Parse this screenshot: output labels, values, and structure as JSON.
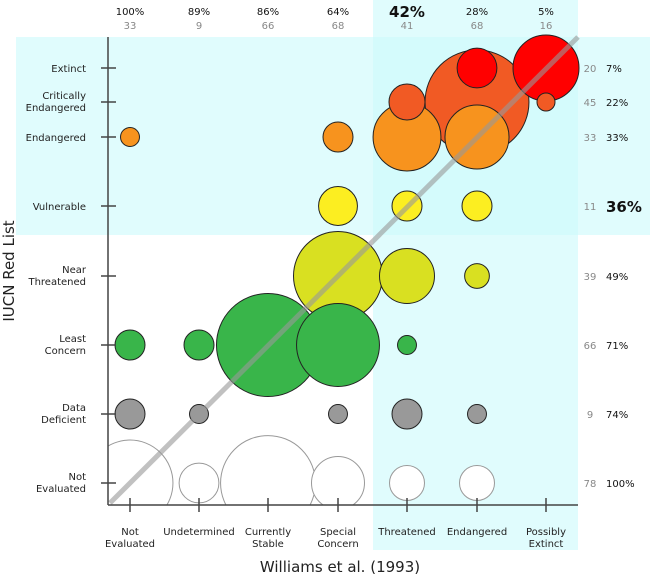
{
  "chart_data": {
    "type": "bubble",
    "xlabel": "Williams et al. (1993)",
    "ylabel": "IUCN Red List",
    "x_categories": [
      "Not Evaluated",
      "Undetermined",
      "Currently Stable",
      "Special Concern",
      "Threatened",
      "Endangered",
      "Possibly Extinct"
    ],
    "y_categories": [
      "Not Evaluated",
      "Data Deficient",
      "Least Concern",
      "Near Threatened",
      "Vulnerable",
      "Endangered",
      "Critically Endangered",
      "Extinct"
    ],
    "column_summary": [
      {
        "pct": "100%",
        "n": "33",
        "bold": false
      },
      {
        "pct": "89%",
        "n": "9",
        "bold": false
      },
      {
        "pct": "86%",
        "n": "66",
        "bold": false
      },
      {
        "pct": "64%",
        "n": "68",
        "bold": false
      },
      {
        "pct": "42%",
        "n": "41",
        "bold": true
      },
      {
        "pct": "28%",
        "n": "68",
        "bold": false
      },
      {
        "pct": "5%",
        "n": "16",
        "bold": false
      }
    ],
    "row_summary": [
      {
        "row": "Extinct",
        "n": "20",
        "pct": "7%",
        "bold": false
      },
      {
        "row": "Critically Endangered",
        "n": "45",
        "pct": "22%",
        "bold": false
      },
      {
        "row": "Endangered",
        "n": "33",
        "pct": "33%",
        "bold": false
      },
      {
        "row": "Vulnerable",
        "n": "11",
        "pct": "36%",
        "bold": true
      },
      {
        "row": "Near Threatened",
        "n": "39",
        "pct": "49%",
        "bold": false
      },
      {
        "row": "Least Concern",
        "n": "66",
        "pct": "71%",
        "bold": false
      },
      {
        "row": "Data Deficient",
        "n": "9",
        "pct": "74%",
        "bold": false
      },
      {
        "row": "Not Evaluated",
        "n": "78",
        "pct": "100%",
        "bold": false
      }
    ],
    "row_colors": {
      "Extinct": "#ff0000",
      "Critically Endangered": "#f15a24",
      "Endangered": "#f7931e",
      "Vulnerable": "#fcee21",
      "Near Threatened": "#d9e021",
      "Least Concern": "#39b54a",
      "Data Deficient": "#999999",
      "Not Evaluated": "#ffffff"
    },
    "highlight_color": "#ccfafc",
    "diagonal_reference_line": true,
    "points": [
      {
        "x": "Endangered",
        "y": "Extinct",
        "size": 44
      },
      {
        "x": "Possibly Extinct",
        "y": "Extinct",
        "size": 121
      },
      {
        "x": "Threatened",
        "y": "Critically Endangered",
        "size": 36
      },
      {
        "x": "Endangered",
        "y": "Critically Endangered",
        "size": 300
      },
      {
        "x": "Possibly Extinct",
        "y": "Critically Endangered",
        "size": 9
      },
      {
        "x": "Not Evaluated",
        "y": "Endangered",
        "size": 10
      },
      {
        "x": "Special Concern",
        "y": "Endangered",
        "size": 25
      },
      {
        "x": "Threatened",
        "y": "Endangered",
        "size": 128
      },
      {
        "x": "Endangered",
        "y": "Endangered",
        "size": 114
      },
      {
        "x": "Special Concern",
        "y": "Vulnerable",
        "size": 42
      },
      {
        "x": "Threatened",
        "y": "Vulnerable",
        "size": 25
      },
      {
        "x": "Endangered",
        "y": "Vulnerable",
        "size": 25
      },
      {
        "x": "Special Concern",
        "y": "Near Threatened",
        "size": 220
      },
      {
        "x": "Threatened",
        "y": "Near Threatened",
        "size": 84
      },
      {
        "x": "Endangered",
        "y": "Near Threatened",
        "size": 17
      },
      {
        "x": "Not Evaluated",
        "y": "Least Concern",
        "size": 25
      },
      {
        "x": "Undetermined",
        "y": "Least Concern",
        "size": 25
      },
      {
        "x": "Currently Stable",
        "y": "Least Concern",
        "size": 295
      },
      {
        "x": "Special Concern",
        "y": "Least Concern",
        "size": 191
      },
      {
        "x": "Threatened",
        "y": "Least Concern",
        "size": 10
      },
      {
        "x": "Not Evaluated",
        "y": "Data Deficient",
        "size": 25
      },
      {
        "x": "Undetermined",
        "y": "Data Deficient",
        "size": 10
      },
      {
        "x": "Special Concern",
        "y": "Data Deficient",
        "size": 10
      },
      {
        "x": "Threatened",
        "y": "Data Deficient",
        "size": 25
      },
      {
        "x": "Endangered",
        "y": "Data Deficient",
        "size": 10
      },
      {
        "x": "Not Evaluated",
        "y": "Not Evaluated",
        "size": 205
      },
      {
        "x": "Undetermined",
        "y": "Not Evaluated",
        "size": 44
      },
      {
        "x": "Currently Stable",
        "y": "Not Evaluated",
        "size": 250
      },
      {
        "x": "Special Concern",
        "y": "Not Evaluated",
        "size": 78
      },
      {
        "x": "Threatened",
        "y": "Not Evaluated",
        "size": 34
      },
      {
        "x": "Endangered",
        "y": "Not Evaluated",
        "size": 34
      }
    ]
  }
}
